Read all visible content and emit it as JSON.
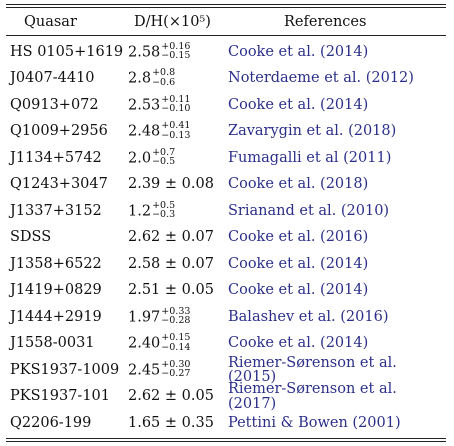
{
  "header": {
    "quasar": "Quasar",
    "dh": "D/H(×10⁵)",
    "references": "References"
  },
  "rows": [
    {
      "quasar": "HS 0105+1619",
      "value": "2.58",
      "plus": "+0.16",
      "minus": "−0.15",
      "pm": "",
      "ref": "Cooke et al. (2014)"
    },
    {
      "quasar": "J0407-4410",
      "value": "2.8",
      "plus": "+0.8",
      "minus": "−0.6",
      "pm": "",
      "ref": "Noterdaeme et al. (2012)"
    },
    {
      "quasar": "Q0913+072",
      "value": "2.53",
      "plus": "+0.11",
      "minus": "−0.10",
      "pm": "",
      "ref": "Cooke et al. (2014)"
    },
    {
      "quasar": "Q1009+2956",
      "value": "2.48",
      "plus": "+0.41",
      "minus": "−0.13",
      "pm": "",
      "ref": "Zavarygin et al. (2018)"
    },
    {
      "quasar": "J1134+5742",
      "value": "2.0",
      "plus": "+0.7",
      "minus": "−0.5",
      "pm": "",
      "ref": "Fumagalli et al (2011)"
    },
    {
      "quasar": "Q1243+3047",
      "value": "2.39 ± 0.08",
      "plus": "",
      "minus": "",
      "pm": "",
      "ref": "Cooke et al. (2018)"
    },
    {
      "quasar": "J1337+3152",
      "value": "1.2",
      "plus": "+0.5",
      "minus": "−0.3",
      "pm": "",
      "ref": "Srianand et al. (2010)"
    },
    {
      "quasar": "SDSS",
      "value": "2.62 ± 0.07",
      "plus": "",
      "minus": "",
      "pm": "",
      "ref": "Cooke et al. (2016)"
    },
    {
      "quasar": "J1358+6522",
      "value": "2.58 ± 0.07",
      "plus": "",
      "minus": "",
      "pm": "",
      "ref": "Cooke et al. (2014)"
    },
    {
      "quasar": "J1419+0829",
      "value": "2.51 ± 0.05",
      "plus": "",
      "minus": "",
      "pm": "",
      "ref": "Cooke et al. (2014)"
    },
    {
      "quasar": "J1444+2919",
      "value": "1.97",
      "plus": "+0.33",
      "minus": "−0.28",
      "pm": "",
      "ref": "Balashev et al. (2016)"
    },
    {
      "quasar": "J1558-0031",
      "value": "2.40",
      "plus": "+0.15",
      "minus": "−0.14",
      "pm": "",
      "ref": "Cooke et al. (2014)"
    },
    {
      "quasar": "PKS1937-1009",
      "value": "2.45",
      "plus": "+0.30",
      "minus": "−0.27",
      "pm": "",
      "ref": "Riemer-Sørenson et al. (2015)"
    },
    {
      "quasar": "PKS1937-101",
      "value": "2.62 ± 0.05",
      "plus": "",
      "minus": "",
      "pm": "",
      "ref": "Riemer-Sørenson et al. (2017)"
    },
    {
      "quasar": "Q2206-199",
      "value": "1.65 ± 0.35",
      "plus": "",
      "minus": "",
      "pm": "",
      "ref": "Pettini & Bowen (2001)"
    }
  ]
}
